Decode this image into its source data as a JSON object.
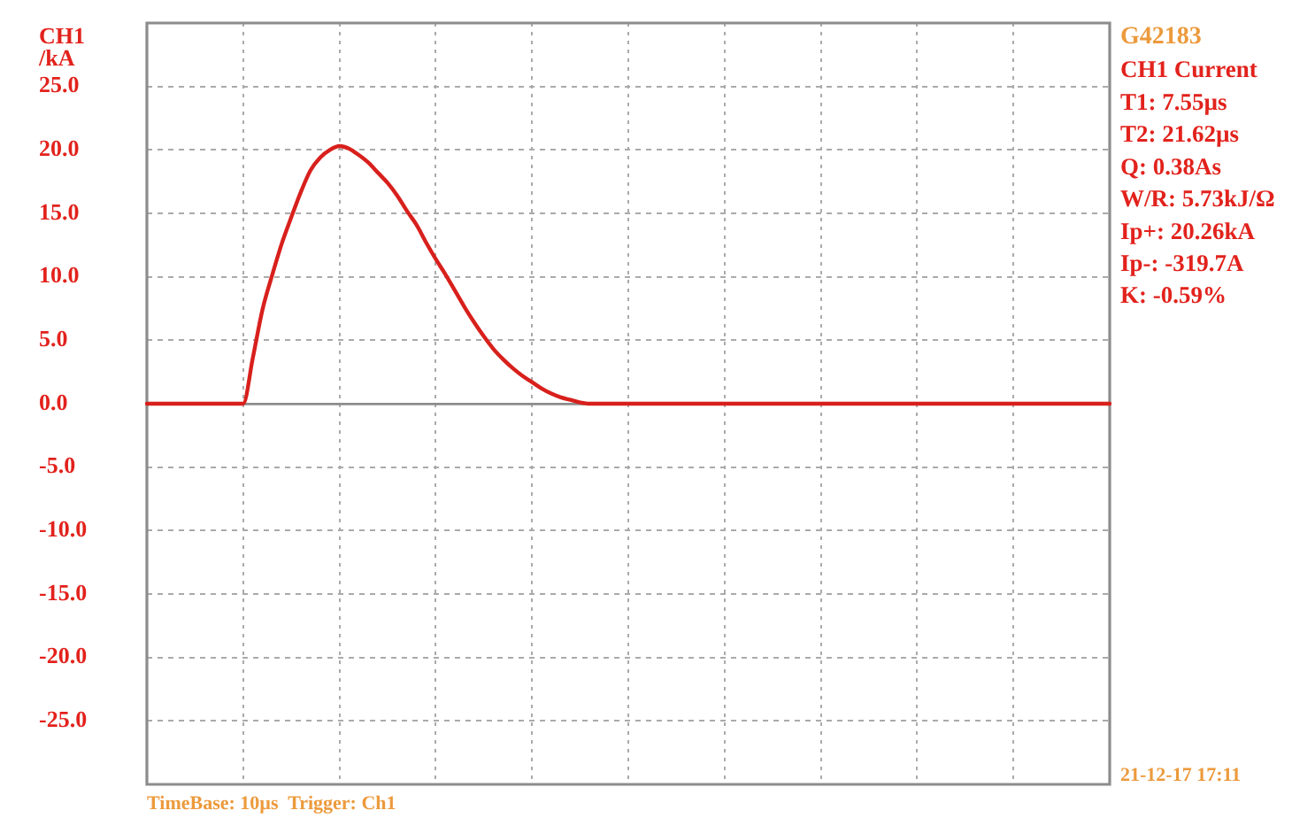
{
  "chart_data": {
    "type": "line",
    "title": "G42183",
    "subtitle": "CH1 Current",
    "ylabel": "CH1 /kA",
    "xlabel": "TimeBase: 10µs  Trigger: Ch1",
    "annotations": [
      "T1: 7.55µs",
      "T2: 21.62µs",
      "Q: 0.38As",
      "W/R: 5.73kJ/Ω",
      "Ip+: 20.26kA",
      "Ip-: -319.7A",
      "K: -0.59%",
      "21-12-17 17:11"
    ],
    "categories": [
      null,
      null,
      null,
      null,
      null,
      null,
      null,
      null,
      null,
      null,
      null,
      null,
      null,
      null,
      null,
      null,
      null,
      null,
      null,
      null,
      null,
      null,
      null,
      null,
      null,
      null,
      null,
      null,
      null,
      null,
      null,
      null,
      null,
      null,
      null,
      null,
      null,
      null,
      null,
      null,
      null,
      null,
      null,
      null,
      null,
      null,
      null,
      null,
      null,
      null,
      null,
      null,
      null,
      null,
      null,
      null,
      null,
      null,
      null,
      null,
      null,
      null,
      null,
      null,
      null,
      null,
      null,
      null,
      null,
      null,
      null,
      null,
      null,
      null,
      null,
      null,
      null,
      null,
      null,
      null,
      null,
      null,
      null,
      null,
      null,
      null,
      null,
      null,
      null,
      null,
      null,
      null,
      null,
      null,
      null,
      null,
      null,
      null,
      null,
      null,
      null
    ],
    "values": [
      0,
      0,
      0,
      0,
      0,
      0,
      0,
      0,
      0,
      0,
      0,
      3.6,
      7.4,
      10.1,
      12.6,
      14.7,
      16.7,
      18.4,
      19.4,
      20.0,
      20.3,
      20.1,
      19.6,
      19.0,
      18.2,
      17.4,
      16.4,
      15.2,
      14.1,
      12.7,
      11.4,
      10.2,
      8.9,
      7.6,
      6.4,
      5.3,
      4.3,
      3.5,
      2.8,
      2.2,
      1.7,
      1.2,
      0.8,
      0.5,
      0.3,
      0.1,
      0,
      0,
      0,
      0,
      0,
      0,
      0,
      0,
      0,
      0,
      0,
      0,
      0,
      0,
      0,
      0,
      0,
      0,
      0,
      0,
      0,
      0,
      0,
      0,
      0,
      0,
      0,
      0,
      0,
      0,
      0,
      0,
      0,
      0,
      0,
      0,
      0,
      0,
      0,
      0,
      0,
      0,
      0,
      0,
      0,
      0,
      0,
      0,
      0,
      0,
      0,
      0,
      0,
      0,
      0
    ],
    "color": "#d8201c",
    "ylim": [
      -30,
      30
    ],
    "yticks": [
      {
        "value": -25,
        "label": "-25.0"
      },
      {
        "value": -20,
        "label": "-20.0"
      },
      {
        "value": -15,
        "label": "-15.0"
      },
      {
        "value": -10,
        "label": "-10.0"
      },
      {
        "value": -5,
        "label": "-5.0"
      },
      {
        "value": 0,
        "label": "0.0"
      },
      {
        "value": 5,
        "label": "5.0"
      },
      {
        "value": 10,
        "label": "10.0"
      },
      {
        "value": 15,
        "label": "15.0"
      },
      {
        "value": 20,
        "label": "20.0"
      },
      {
        "value": 25,
        "label": "25.0"
      }
    ],
    "grid": true
  }
}
